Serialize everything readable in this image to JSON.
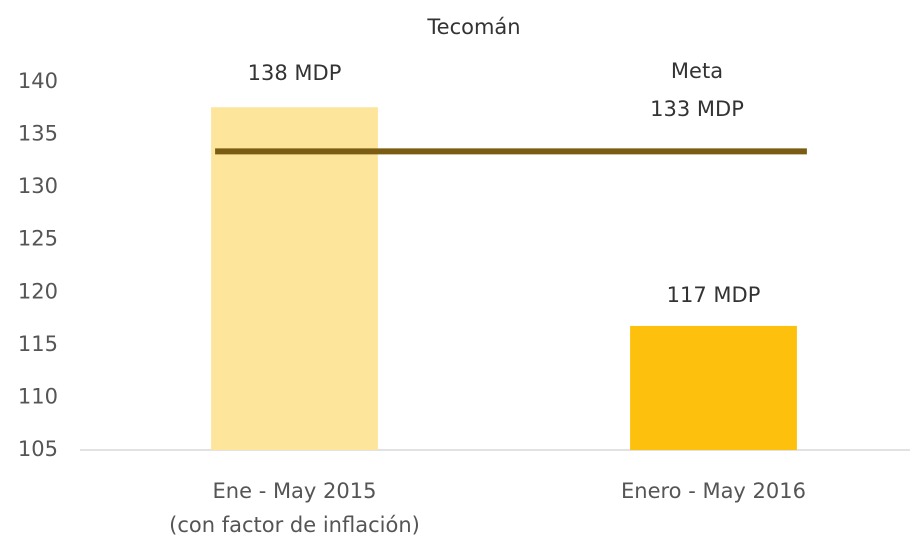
{
  "chart_data": {
    "type": "bar",
    "title": "Tecomán",
    "categories": [
      [
        "Ene - May 2015",
        "(con factor de inflación)"
      ],
      [
        "Enero - May 2016"
      ]
    ],
    "values": [
      137.6,
      116.8
    ],
    "value_labels": [
      "138 MDP",
      "117 MDP"
    ],
    "colors": [
      "#fde59b",
      "#fdc00c"
    ],
    "target": {
      "name": "Meta",
      "value": 133.4,
      "label": "133 MDP",
      "color": "#7a5c12"
    },
    "ylim": [
      105,
      140
    ],
    "yticks": [
      105,
      110,
      115,
      120,
      125,
      130,
      135,
      140
    ],
    "grid": false
  }
}
